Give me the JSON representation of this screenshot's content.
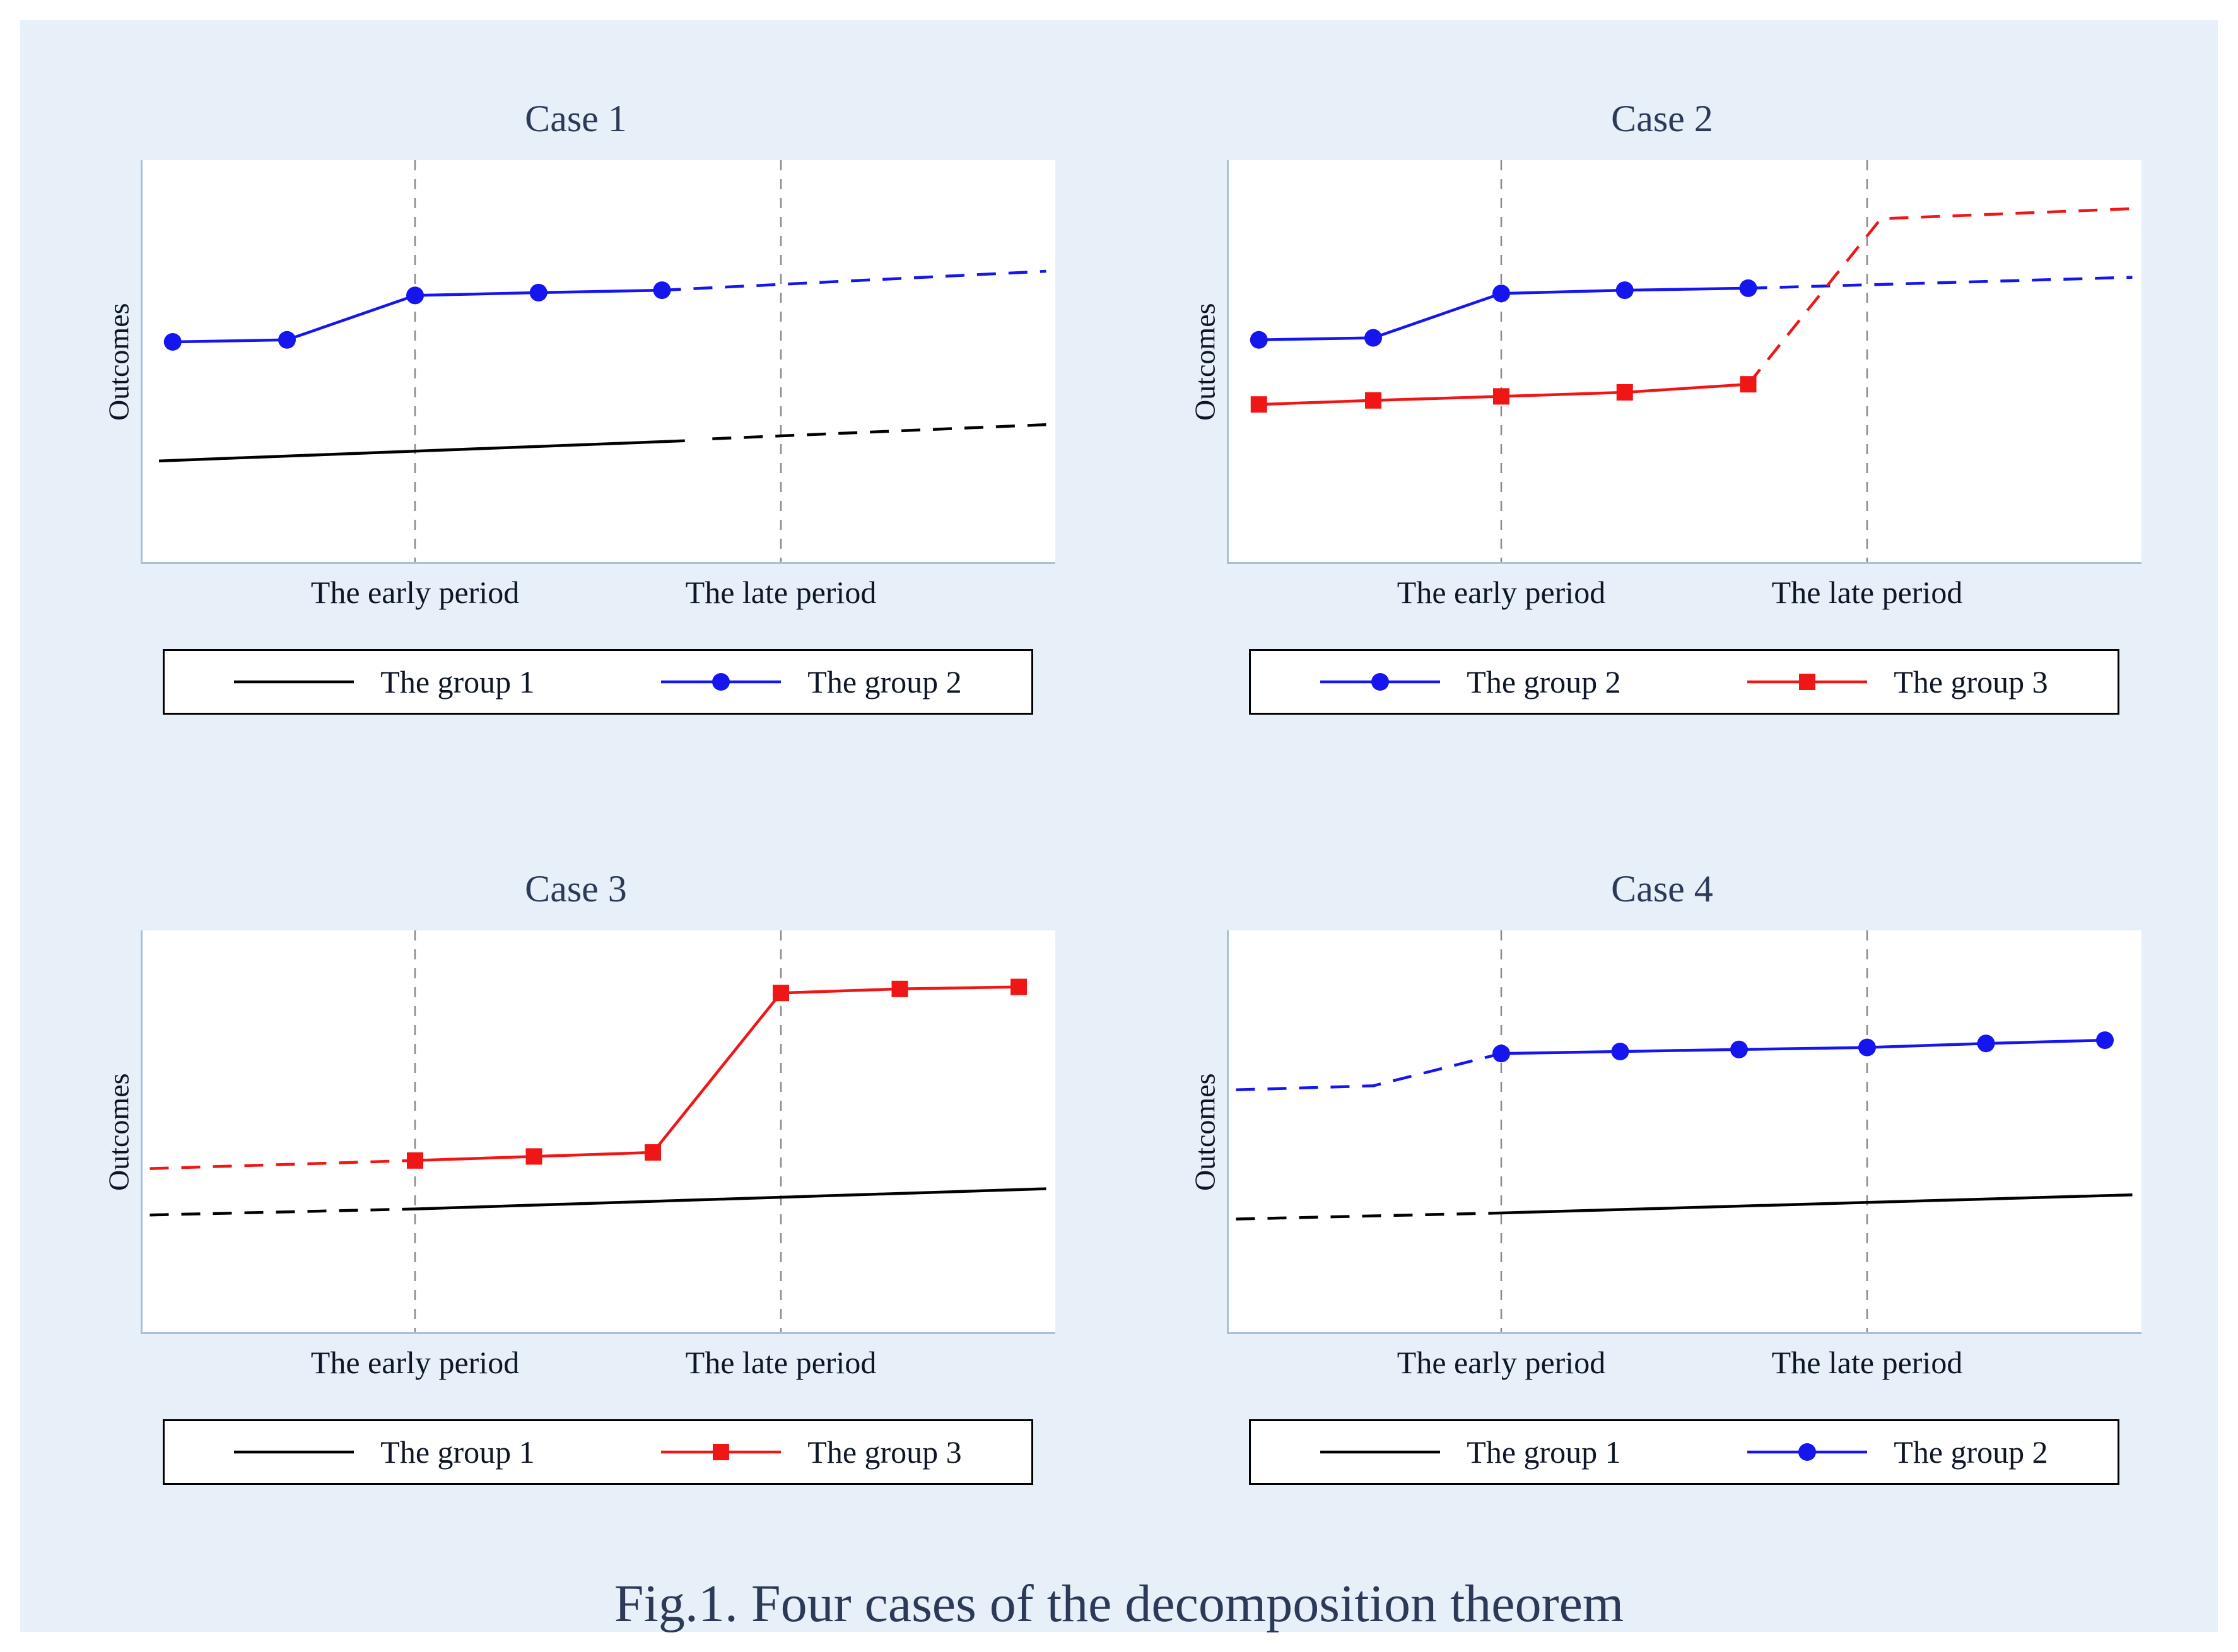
{
  "caption": "Fig.1. Four cases of the decomposition theorem",
  "colors": {
    "background": "#e7f0f9",
    "plot_bg": "#ffffff",
    "axis": "#a9c0d6",
    "gridline": "#8a8a8a",
    "blue": "#1515ef",
    "red": "#f01616",
    "black": "#000000",
    "title_text": "#2c3a57"
  },
  "chart_data": [
    {
      "type": "line",
      "title": "Case 1",
      "ylabel": "Outcomes",
      "xlim": [
        0,
        10
      ],
      "ylim": [
        0,
        10
      ],
      "gridlines_x": [
        3.0,
        7.0
      ],
      "x_tick_labels": [
        "The early period",
        "The late period"
      ],
      "grid": "vertical-dashed-only",
      "legend_position": "below",
      "series": [
        {
          "name": "The group 1",
          "color": "#000000",
          "marker": "none",
          "segments": [
            {
              "style": "solid",
              "points": [
                [
                  0.2,
                  2.55
                ],
                [
                  5.95,
                  3.05
                ]
              ]
            },
            {
              "style": "dashed",
              "points": [
                [
                  6.25,
                  3.1
                ],
                [
                  9.9,
                  3.45
                ]
              ]
            }
          ],
          "markers": []
        },
        {
          "name": "The group 2",
          "color": "#1515ef",
          "marker": "circle",
          "segments": [
            {
              "style": "solid",
              "points": [
                [
                  0.35,
                  5.5
                ],
                [
                  1.6,
                  5.55
                ],
                [
                  3.0,
                  6.65
                ],
                [
                  4.35,
                  6.72
                ],
                [
                  5.7,
                  6.78
                ]
              ]
            },
            {
              "style": "dashed",
              "points": [
                [
                  5.7,
                  6.78
                ],
                [
                  9.9,
                  7.25
                ]
              ]
            }
          ],
          "markers": [
            [
              0.35,
              5.5
            ],
            [
              1.6,
              5.55
            ],
            [
              3.0,
              6.65
            ],
            [
              4.35,
              6.72
            ],
            [
              5.7,
              6.78
            ]
          ]
        }
      ],
      "legend": [
        {
          "label": "The group 1",
          "color": "#000000",
          "marker": "none"
        },
        {
          "label": "The group 2",
          "color": "#1515ef",
          "marker": "circle"
        }
      ]
    },
    {
      "type": "line",
      "title": "Case 2",
      "ylabel": "Outcomes",
      "xlim": [
        0,
        10
      ],
      "ylim": [
        0,
        10
      ],
      "gridlines_x": [
        3.0,
        7.0
      ],
      "x_tick_labels": [
        "The early period",
        "The late period"
      ],
      "grid": "vertical-dashed-only",
      "legend_position": "below",
      "series": [
        {
          "name": "The group 2",
          "color": "#1515ef",
          "marker": "circle",
          "segments": [
            {
              "style": "solid",
              "points": [
                [
                  0.35,
                  5.55
                ],
                [
                  1.6,
                  5.6
                ],
                [
                  3.0,
                  6.7
                ],
                [
                  4.35,
                  6.78
                ],
                [
                  5.7,
                  6.83
                ]
              ]
            },
            {
              "style": "dashed",
              "points": [
                [
                  5.7,
                  6.83
                ],
                [
                  9.9,
                  7.1
                ]
              ]
            }
          ],
          "markers": [
            [
              0.35,
              5.55
            ],
            [
              1.6,
              5.6
            ],
            [
              3.0,
              6.7
            ],
            [
              4.35,
              6.78
            ],
            [
              5.7,
              6.83
            ]
          ]
        },
        {
          "name": "The group 3",
          "color": "#f01616",
          "marker": "square",
          "segments": [
            {
              "style": "solid",
              "points": [
                [
                  0.35,
                  3.95
                ],
                [
                  1.6,
                  4.05
                ],
                [
                  3.0,
                  4.15
                ],
                [
                  4.35,
                  4.25
                ],
                [
                  5.7,
                  4.45
                ]
              ]
            },
            {
              "style": "dashed",
              "points": [
                [
                  5.7,
                  4.45
                ],
                [
                  7.15,
                  8.55
                ],
                [
                  9.9,
                  8.8
                ]
              ]
            }
          ],
          "markers": [
            [
              0.35,
              3.95
            ],
            [
              1.6,
              4.05
            ],
            [
              3.0,
              4.15
            ],
            [
              4.35,
              4.25
            ],
            [
              5.7,
              4.45
            ]
          ]
        }
      ],
      "legend": [
        {
          "label": "The group 2",
          "color": "#1515ef",
          "marker": "circle"
        },
        {
          "label": "The group 3",
          "color": "#f01616",
          "marker": "square"
        }
      ]
    },
    {
      "type": "line",
      "title": "Case 3",
      "ylabel": "Outcomes",
      "xlim": [
        0,
        10
      ],
      "ylim": [
        0,
        10
      ],
      "gridlines_x": [
        3.0,
        7.0
      ],
      "x_tick_labels": [
        "The early period",
        "The late period"
      ],
      "grid": "vertical-dashed-only",
      "legend_position": "below",
      "series": [
        {
          "name": "The group 1",
          "color": "#000000",
          "marker": "none",
          "segments": [
            {
              "style": "dashed",
              "points": [
                [
                  0.1,
                  2.95
                ],
                [
                  3.0,
                  3.1
                ]
              ]
            },
            {
              "style": "solid",
              "points": [
                [
                  3.0,
                  3.1
                ],
                [
                  9.9,
                  3.6
                ]
              ]
            }
          ],
          "markers": []
        },
        {
          "name": "The group 3",
          "color": "#f01616",
          "marker": "square",
          "segments": [
            {
              "style": "dashed",
              "points": [
                [
                  0.1,
                  4.1
                ],
                [
                  3.0,
                  4.3
                ]
              ]
            },
            {
              "style": "solid",
              "points": [
                [
                  3.0,
                  4.3
                ],
                [
                  4.3,
                  4.4
                ],
                [
                  5.6,
                  4.5
                ],
                [
                  7.0,
                  8.45
                ],
                [
                  8.3,
                  8.55
                ],
                [
                  9.6,
                  8.6
                ]
              ]
            }
          ],
          "markers": [
            [
              3.0,
              4.3
            ],
            [
              4.3,
              4.4
            ],
            [
              5.6,
              4.5
            ],
            [
              7.0,
              8.45
            ],
            [
              8.3,
              8.55
            ],
            [
              9.6,
              8.6
            ]
          ]
        }
      ],
      "legend": [
        {
          "label": "The group 1",
          "color": "#000000",
          "marker": "none"
        },
        {
          "label": "The group 3",
          "color": "#f01616",
          "marker": "square"
        }
      ]
    },
    {
      "type": "line",
      "title": "Case 4",
      "ylabel": "Outcomes",
      "xlim": [
        0,
        10
      ],
      "ylim": [
        0,
        10
      ],
      "gridlines_x": [
        3.0,
        7.0
      ],
      "x_tick_labels": [
        "The early period",
        "The late period"
      ],
      "grid": "vertical-dashed-only",
      "legend_position": "below",
      "series": [
        {
          "name": "The group 1",
          "color": "#000000",
          "marker": "none",
          "segments": [
            {
              "style": "dashed",
              "points": [
                [
                  0.1,
                  2.85
                ],
                [
                  3.0,
                  3.0
                ]
              ]
            },
            {
              "style": "solid",
              "points": [
                [
                  3.0,
                  3.0
                ],
                [
                  9.9,
                  3.45
                ]
              ]
            }
          ],
          "markers": []
        },
        {
          "name": "The group 2",
          "color": "#1515ef",
          "marker": "circle",
          "segments": [
            {
              "style": "dashed",
              "points": [
                [
                  0.1,
                  6.05
                ],
                [
                  1.6,
                  6.15
                ],
                [
                  3.0,
                  6.95
                ]
              ]
            },
            {
              "style": "solid",
              "points": [
                [
                  3.0,
                  6.95
                ],
                [
                  4.3,
                  7.0
                ],
                [
                  5.6,
                  7.05
                ],
                [
                  7.0,
                  7.1
                ],
                [
                  8.3,
                  7.2
                ],
                [
                  9.6,
                  7.28
                ]
              ]
            }
          ],
          "markers": [
            [
              3.0,
              6.95
            ],
            [
              4.3,
              7.0
            ],
            [
              5.6,
              7.05
            ],
            [
              7.0,
              7.1
            ],
            [
              8.3,
              7.2
            ],
            [
              9.6,
              7.28
            ]
          ]
        }
      ],
      "legend": [
        {
          "label": "The group 1",
          "color": "#000000",
          "marker": "none"
        },
        {
          "label": "The group 2",
          "color": "#1515ef",
          "marker": "circle"
        }
      ]
    }
  ]
}
